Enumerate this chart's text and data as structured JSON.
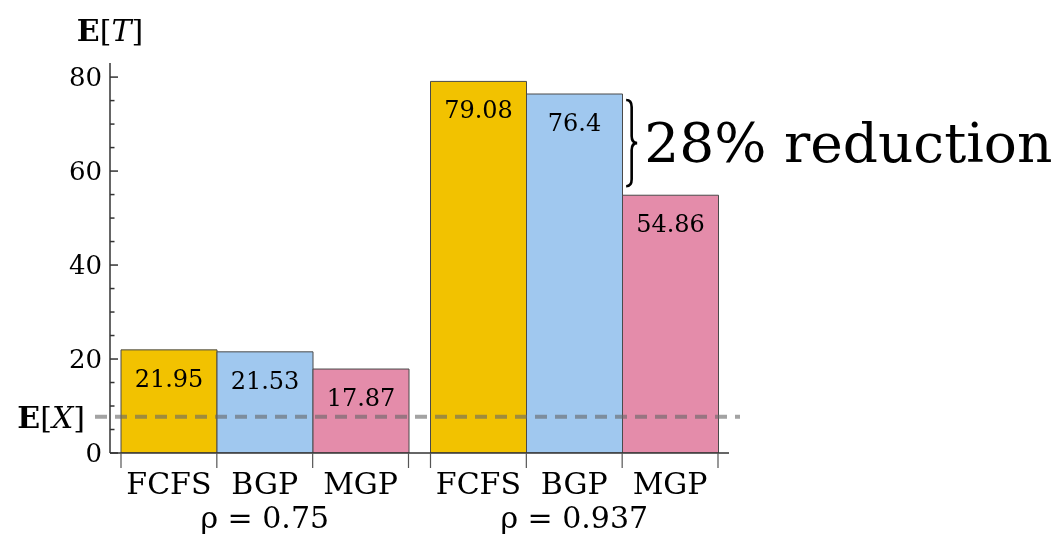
{
  "chart_data": {
    "type": "bar",
    "ylabel": "E[T]",
    "categories": [
      "ρ = 0.75",
      "ρ = 0.937"
    ],
    "series": [
      {
        "name": "FCFS",
        "color": "#f2c200",
        "values": [
          21.95,
          79.08
        ]
      },
      {
        "name": "BGP",
        "color": "#a0c8ef",
        "values": [
          21.53,
          76.4
        ]
      },
      {
        "name": "MGP",
        "color": "#e48caa",
        "values": [
          17.87,
          54.86
        ]
      }
    ],
    "ylim": [
      0,
      83
    ],
    "yticks": [
      0,
      {
        "value": 5,
        "label": null
      },
      {
        "value": 10,
        "label": null
      },
      {
        "value": 15,
        "label": null
      },
      20,
      {
        "value": 25,
        "label": null
      },
      {
        "value": 30,
        "label": null
      },
      {
        "value": 35,
        "label": null
      },
      40,
      {
        "value": 45,
        "label": null
      },
      {
        "value": 50,
        "label": null
      },
      {
        "value": 55,
        "label": null
      },
      60,
      {
        "value": 65,
        "label": null
      },
      {
        "value": 70,
        "label": null
      },
      {
        "value": 75,
        "label": null
      },
      80
    ],
    "ref_lines": [
      {
        "axis": "y",
        "value": 7.7,
        "label": "E[X]",
        "color": "#666666",
        "line_style": "dashed"
      }
    ],
    "annotations": [
      "28% reduction"
    ],
    "data_labels": true,
    "legend": "bottom"
  }
}
